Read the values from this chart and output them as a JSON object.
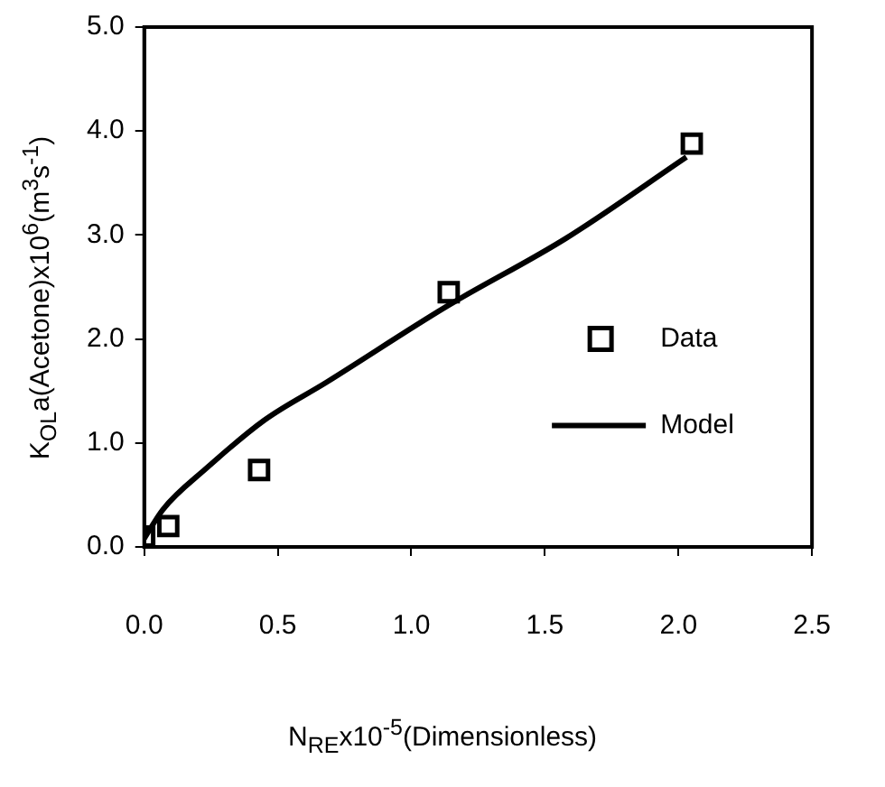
{
  "chart_data": {
    "type": "scatter",
    "xlabel": "N$_{RE}$x10$^{-5}$(Dimensionless)",
    "ylabel": "K$_{OL}$a(Acetone)x10$^{6}$(m$^{3}$s$^{-1}$)",
    "xlim": [
      0,
      2.5
    ],
    "ylim": [
      0,
      5
    ],
    "xticks": [
      {
        "value": 0,
        "label": "0.0"
      },
      0.5,
      {
        "value": 1,
        "label": "1.0"
      },
      1.5,
      {
        "value": 2,
        "label": "2.0"
      },
      2.5
    ],
    "yticks": [
      {
        "value": 0,
        "label": "0.0"
      },
      {
        "value": 1,
        "label": "1.0"
      },
      {
        "value": 2,
        "label": "2.0"
      },
      {
        "value": 3,
        "label": "3.0"
      },
      {
        "value": 4,
        "label": "4.0"
      },
      {
        "value": 5,
        "label": "5.0"
      }
    ],
    "grid": false,
    "legend": "right",
    "series": [
      {
        "name": "Data",
        "marker": "square",
        "color": "#000000",
        "x": [
          0,
          0.09,
          0.43,
          1.14,
          2.05
        ],
        "values": [
          0.1,
          0.2,
          0.74,
          2.45,
          3.88
        ]
      },
      {
        "name": "Model",
        "type": "line",
        "marker": "none",
        "line_style": "solid",
        "color": "#000000",
        "x": [
          0,
          0.07,
          0.23,
          0.45,
          0.68,
          1.13,
          1.58,
          2.03
        ],
        "values": [
          0.08,
          0.36,
          0.75,
          1.22,
          1.58,
          2.31,
          2.97,
          3.75
        ]
      }
    ]
  }
}
